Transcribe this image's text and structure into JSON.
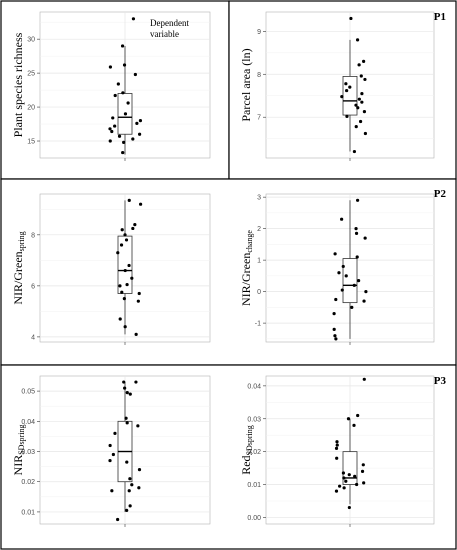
{
  "chart_data": [
    {
      "type": "box",
      "ylabel": "Plant species richness",
      "yticks": [
        15,
        20,
        25,
        30
      ],
      "ylim": [
        12.5,
        34
      ],
      "annotation": [
        "Dependent",
        "variable"
      ],
      "tag": "",
      "box": {
        "min": 13,
        "q1": 16,
        "median": 18.5,
        "q3": 22,
        "max": 29
      },
      "points": [
        13.3,
        14.8,
        15.0,
        15.3,
        15.7,
        16.0,
        16.4,
        16.8,
        17.2,
        17.6,
        18.0,
        18.4,
        19.0,
        20.6,
        21.7,
        22.1,
        23.4,
        24.8,
        25.9,
        26.2,
        29.0,
        33.0
      ]
    },
    {
      "type": "box",
      "ylabel": "Parcel area (ln)",
      "yticks": [
        7,
        8,
        9
      ],
      "ylim": [
        6.05,
        9.45
      ],
      "annotation": [],
      "tag": "P1",
      "box": {
        "min": 6.2,
        "q1": 7.05,
        "median": 7.38,
        "q3": 7.95,
        "max": 8.8
      },
      "points": [
        6.2,
        6.62,
        6.78,
        6.9,
        7.02,
        7.13,
        7.22,
        7.28,
        7.35,
        7.42,
        7.48,
        7.55,
        7.62,
        7.7,
        7.78,
        7.88,
        7.96,
        8.22,
        8.3,
        8.8,
        9.3
      ]
    },
    {
      "type": "box",
      "ylabel": "NIR/Green",
      "ylabel_sub": "spring",
      "yticks": [
        4,
        6,
        8
      ],
      "ylim": [
        3.8,
        9.6
      ],
      "annotation": [],
      "tag": "P2",
      "box": {
        "min": 4.1,
        "q1": 5.7,
        "median": 6.6,
        "q3": 7.95,
        "max": 9.35
      },
      "points": [
        4.1,
        4.4,
        4.7,
        5.4,
        5.5,
        5.7,
        5.75,
        6.0,
        6.05,
        6.3,
        6.6,
        6.8,
        7.3,
        7.6,
        7.8,
        8.0,
        8.2,
        8.25,
        8.4,
        9.2,
        9.35
      ]
    },
    {
      "type": "box",
      "ylabel": "NIR/Green",
      "ylabel_sub": "change",
      "yticks": [
        -1,
        0,
        1,
        2,
        3
      ],
      "ylim": [
        -1.6,
        3.1
      ],
      "annotation": [],
      "tag": "",
      "box": {
        "min": -1.5,
        "q1": -0.35,
        "median": 0.2,
        "q3": 1.05,
        "max": 2.9
      },
      "points": [
        -1.5,
        -1.4,
        -1.2,
        -0.7,
        -0.5,
        -0.3,
        -0.25,
        0.0,
        0.05,
        0.2,
        0.35,
        0.5,
        0.6,
        0.8,
        1.1,
        1.2,
        1.7,
        1.85,
        2.0,
        2.3,
        2.9
      ]
    },
    {
      "type": "box",
      "ylabel": "NIR",
      "ylabel_sub": "SDspring",
      "yticks": [
        0.01,
        0.02,
        0.03,
        0.04,
        0.05
      ],
      "ylim": [
        0.006,
        0.055
      ],
      "annotation": [],
      "tag": "",
      "box": {
        "min": 0.01,
        "q1": 0.02,
        "median": 0.03,
        "q3": 0.04,
        "max": 0.053
      },
      "points": [
        0.0075,
        0.0105,
        0.012,
        0.017,
        0.017,
        0.018,
        0.019,
        0.021,
        0.024,
        0.0265,
        0.027,
        0.029,
        0.032,
        0.036,
        0.0385,
        0.0395,
        0.041,
        0.049,
        0.0495,
        0.051,
        0.053,
        0.053
      ]
    },
    {
      "type": "box",
      "ylabel": "Red",
      "ylabel_sub": "SDspring",
      "yticks": [
        0.0,
        0.01,
        0.02,
        0.03,
        0.04
      ],
      "ylim": [
        -0.002,
        0.043
      ],
      "annotation": [],
      "tag": "P3",
      "box": {
        "min": 0.004,
        "q1": 0.01,
        "median": 0.012,
        "q3": 0.02,
        "max": 0.03
      },
      "points": [
        0.003,
        0.008,
        0.009,
        0.0095,
        0.01,
        0.0105,
        0.011,
        0.012,
        0.0125,
        0.013,
        0.0135,
        0.014,
        0.016,
        0.018,
        0.021,
        0.022,
        0.023,
        0.028,
        0.03,
        0.031,
        0.042
      ]
    }
  ]
}
